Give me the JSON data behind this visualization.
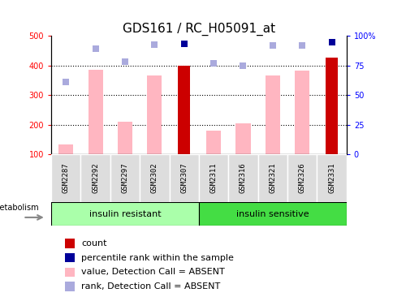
{
  "title": "GDS161 / RC_H05091_at",
  "samples": [
    "GSM2287",
    "GSM2292",
    "GSM2297",
    "GSM2302",
    "GSM2307",
    "GSM2311",
    "GSM2316",
    "GSM2321",
    "GSM2326",
    "GSM2331"
  ],
  "group_ir_label": "insulin resistant",
  "group_is_label": "insulin sensitive",
  "group_ir_color": "#AAFFAA",
  "group_is_color": "#44DD44",
  "group_label": "metabolism",
  "value_absent": [
    135,
    385,
    210,
    365,
    null,
    180,
    205,
    365,
    383,
    null
  ],
  "rank_absent": [
    345,
    455,
    413,
    470,
    null,
    408,
    398,
    468,
    468,
    null
  ],
  "count": [
    null,
    null,
    null,
    null,
    400,
    null,
    null,
    null,
    null,
    425
  ],
  "percentile_rank": [
    null,
    null,
    null,
    null,
    472,
    null,
    null,
    null,
    null,
    478
  ],
  "ylim_left": [
    100,
    500
  ],
  "yticks_left": [
    100,
    200,
    300,
    400,
    500
  ],
  "yticks_right": [
    0,
    25,
    50,
    75,
    100
  ],
  "yticklabels_right": [
    "0",
    "25",
    "50",
    "75",
    "100%"
  ],
  "color_count": "#CC0000",
  "color_percentile": "#000099",
  "color_value_absent": "#FFB6C1",
  "color_rank_absent": "#AAAADD",
  "bar_width": 0.5,
  "dot_size": 35,
  "title_fontsize": 11,
  "tick_fontsize": 7,
  "label_fontsize": 8,
  "legend_fontsize": 8
}
